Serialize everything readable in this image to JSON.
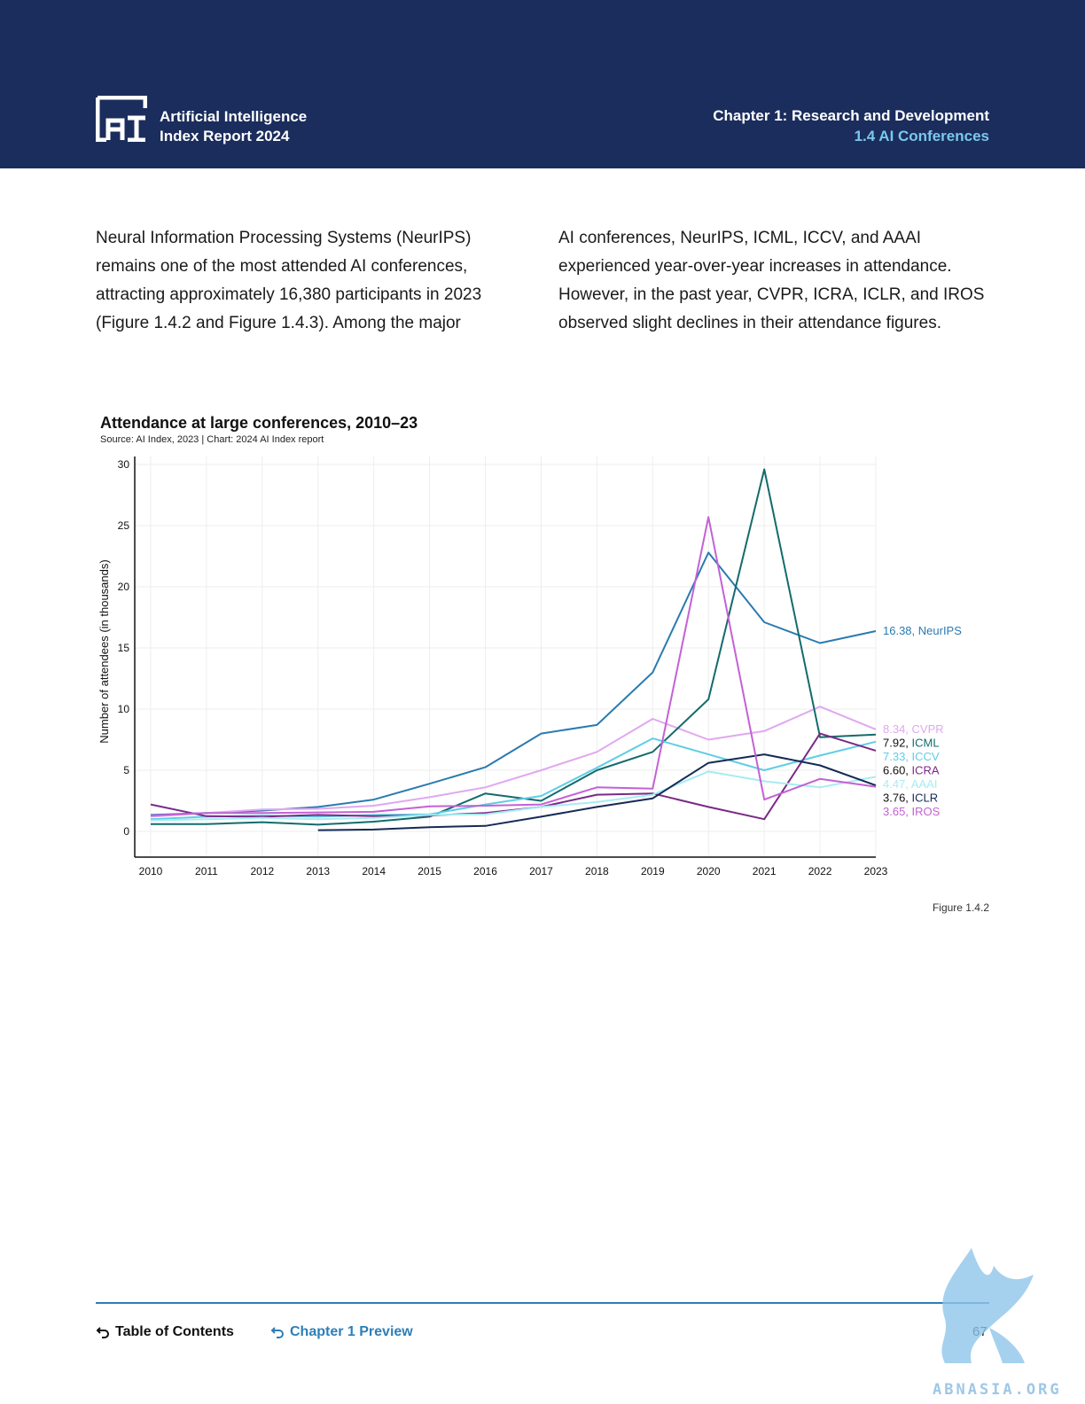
{
  "header": {
    "brand_line1": "Artificial Intelligence",
    "brand_line2": "Index Report 2024",
    "chapter_line1": "Chapter 1: Research and Development",
    "chapter_line2": "1.4 AI Conferences",
    "background": "#1b2d5c",
    "accent": "#7ac8ee"
  },
  "body": {
    "left_column": "Neural Information Processing Systems (NeurIPS) remains one of the most attended AI conferences, attracting approximately 16,380 participants in 2023 (Figure 1.4.2 and Figure 1.4.3). Among the major",
    "right_column": "AI conferences, NeurIPS, ICML, ICCV, and AAAI experienced year-over-year increases in attendance. However, in the past year, CVPR, ICRA, ICLR, and IROS observed slight declines in their attendance figures."
  },
  "figure_label": "Figure 1.4.2",
  "chart_data": {
    "type": "line",
    "title": "Attendance at large conferences, 2010–23",
    "subtitle": "Source: AI Index, 2023 | Chart: 2024 AI Index report",
    "xlabel": "",
    "ylabel": "Number of attendees (in thousands)",
    "ylim": [
      0,
      30
    ],
    "yticks": [
      0,
      5,
      10,
      15,
      20,
      25,
      30
    ],
    "x": [
      2010,
      2011,
      2012,
      2013,
      2014,
      2015,
      2016,
      2017,
      2018,
      2019,
      2020,
      2021,
      2022,
      2023
    ],
    "grid": true,
    "legend": "inline end labels (right)",
    "series": [
      {
        "name": "NeurIPS",
        "end_label": "16.38, NeurIPS",
        "color": "#2a7bb0",
        "values": [
          1.35,
          1.5,
          1.7,
          2.0,
          2.6,
          3.9,
          5.25,
          8.0,
          8.7,
          13.0,
          22.8,
          17.1,
          15.4,
          16.38
        ]
      },
      {
        "name": "CVPR",
        "end_label": "8.34, CVPR",
        "color": "#e0a8f0",
        "values": [
          1.2,
          1.5,
          1.8,
          1.85,
          2.1,
          2.8,
          3.6,
          5.0,
          6.5,
          9.2,
          7.5,
          8.2,
          10.2,
          8.34
        ]
      },
      {
        "name": "ICML",
        "end_label": "7.92, ICML",
        "color": "#146b6b",
        "values": [
          0.6,
          0.6,
          0.75,
          0.55,
          0.8,
          1.2,
          3.1,
          2.5,
          5.0,
          6.5,
          10.8,
          29.6,
          7.7,
          7.92
        ]
      },
      {
        "name": "ICCV",
        "end_label": "7.33, ICCV",
        "color": "#5fcde6",
        "values": [
          1.0,
          1.2,
          1.3,
          1.2,
          1.35,
          1.4,
          2.2,
          2.9,
          5.2,
          7.6,
          6.3,
          5.0,
          6.2,
          7.33
        ]
      },
      {
        "name": "ICRA",
        "end_label": "6.60, ICRA",
        "color": "#7a2a86",
        "values": [
          2.2,
          1.25,
          1.2,
          1.35,
          1.25,
          1.3,
          1.5,
          2.0,
          3.0,
          3.1,
          2.0,
          1.0,
          8.0,
          6.6
        ]
      },
      {
        "name": "AAAI",
        "end_label": "4.47, AAAI",
        "color": "#a6ecf2",
        "values": [
          0.9,
          1.0,
          1.1,
          1.0,
          1.1,
          1.35,
          1.4,
          2.0,
          2.4,
          3.0,
          4.9,
          4.1,
          3.6,
          4.47
        ]
      },
      {
        "name": "ICLR",
        "end_label": "3.76, ICLR",
        "color": "#162a55",
        "values": [
          null,
          null,
          null,
          0.1,
          0.15,
          0.35,
          0.45,
          1.2,
          2.0,
          2.7,
          5.6,
          6.3,
          5.4,
          3.76
        ]
      },
      {
        "name": "IROS",
        "end_label": "3.65, IROS",
        "color": "#c461d6",
        "values": [
          1.3,
          1.5,
          1.5,
          1.55,
          1.6,
          2.05,
          2.1,
          2.2,
          3.6,
          3.5,
          25.7,
          2.6,
          4.3,
          3.65
        ]
      }
    ]
  },
  "footer": {
    "toc_label": "Table of Contents",
    "prev_label": "Chapter 1 Preview",
    "page_number": "67",
    "watermark": "ABNASIA.ORG"
  }
}
